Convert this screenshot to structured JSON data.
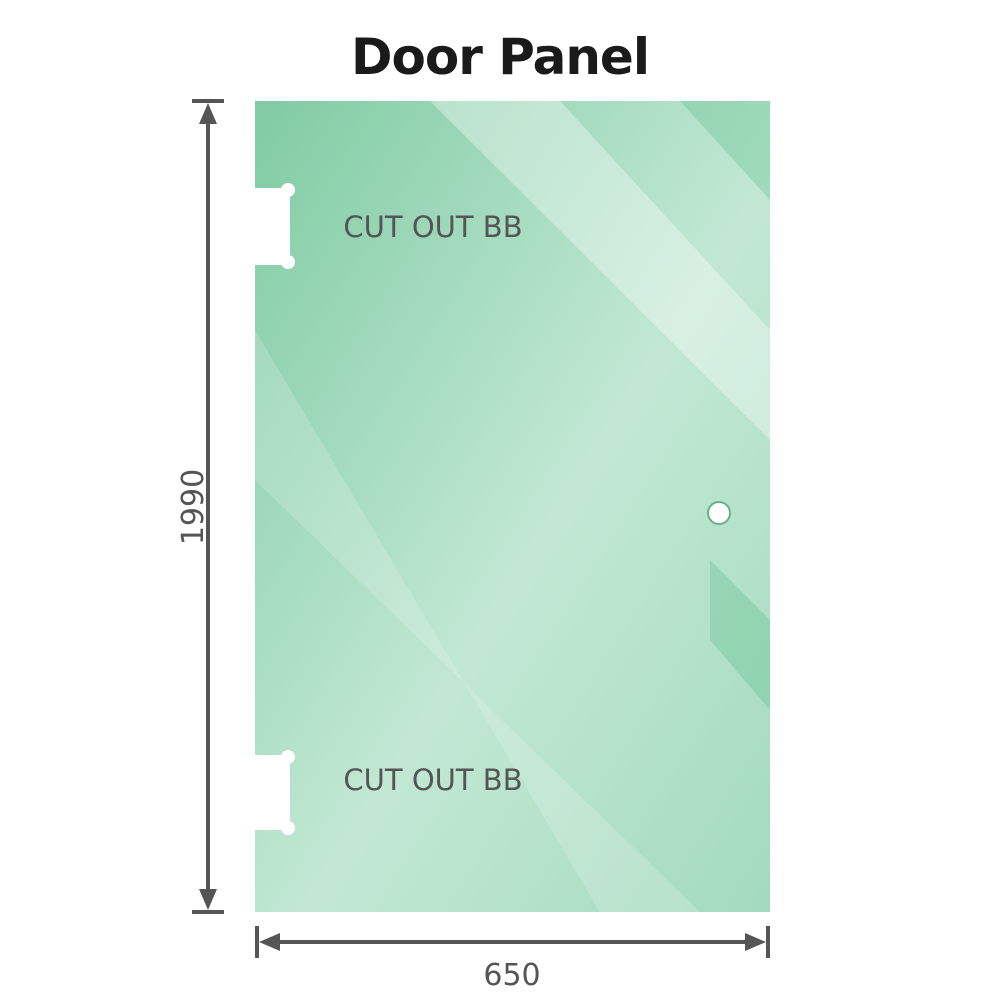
{
  "title": "Door Panel",
  "labels": {
    "cutout_top": "CUT OUT BB",
    "cutout_bottom": "CUT OUT BB"
  },
  "dimensions": {
    "height": "1990",
    "width": "650"
  },
  "colors": {
    "glass": "#86cfa8",
    "glass_light": "#bfe6d2",
    "dimension_line": "#555555"
  }
}
